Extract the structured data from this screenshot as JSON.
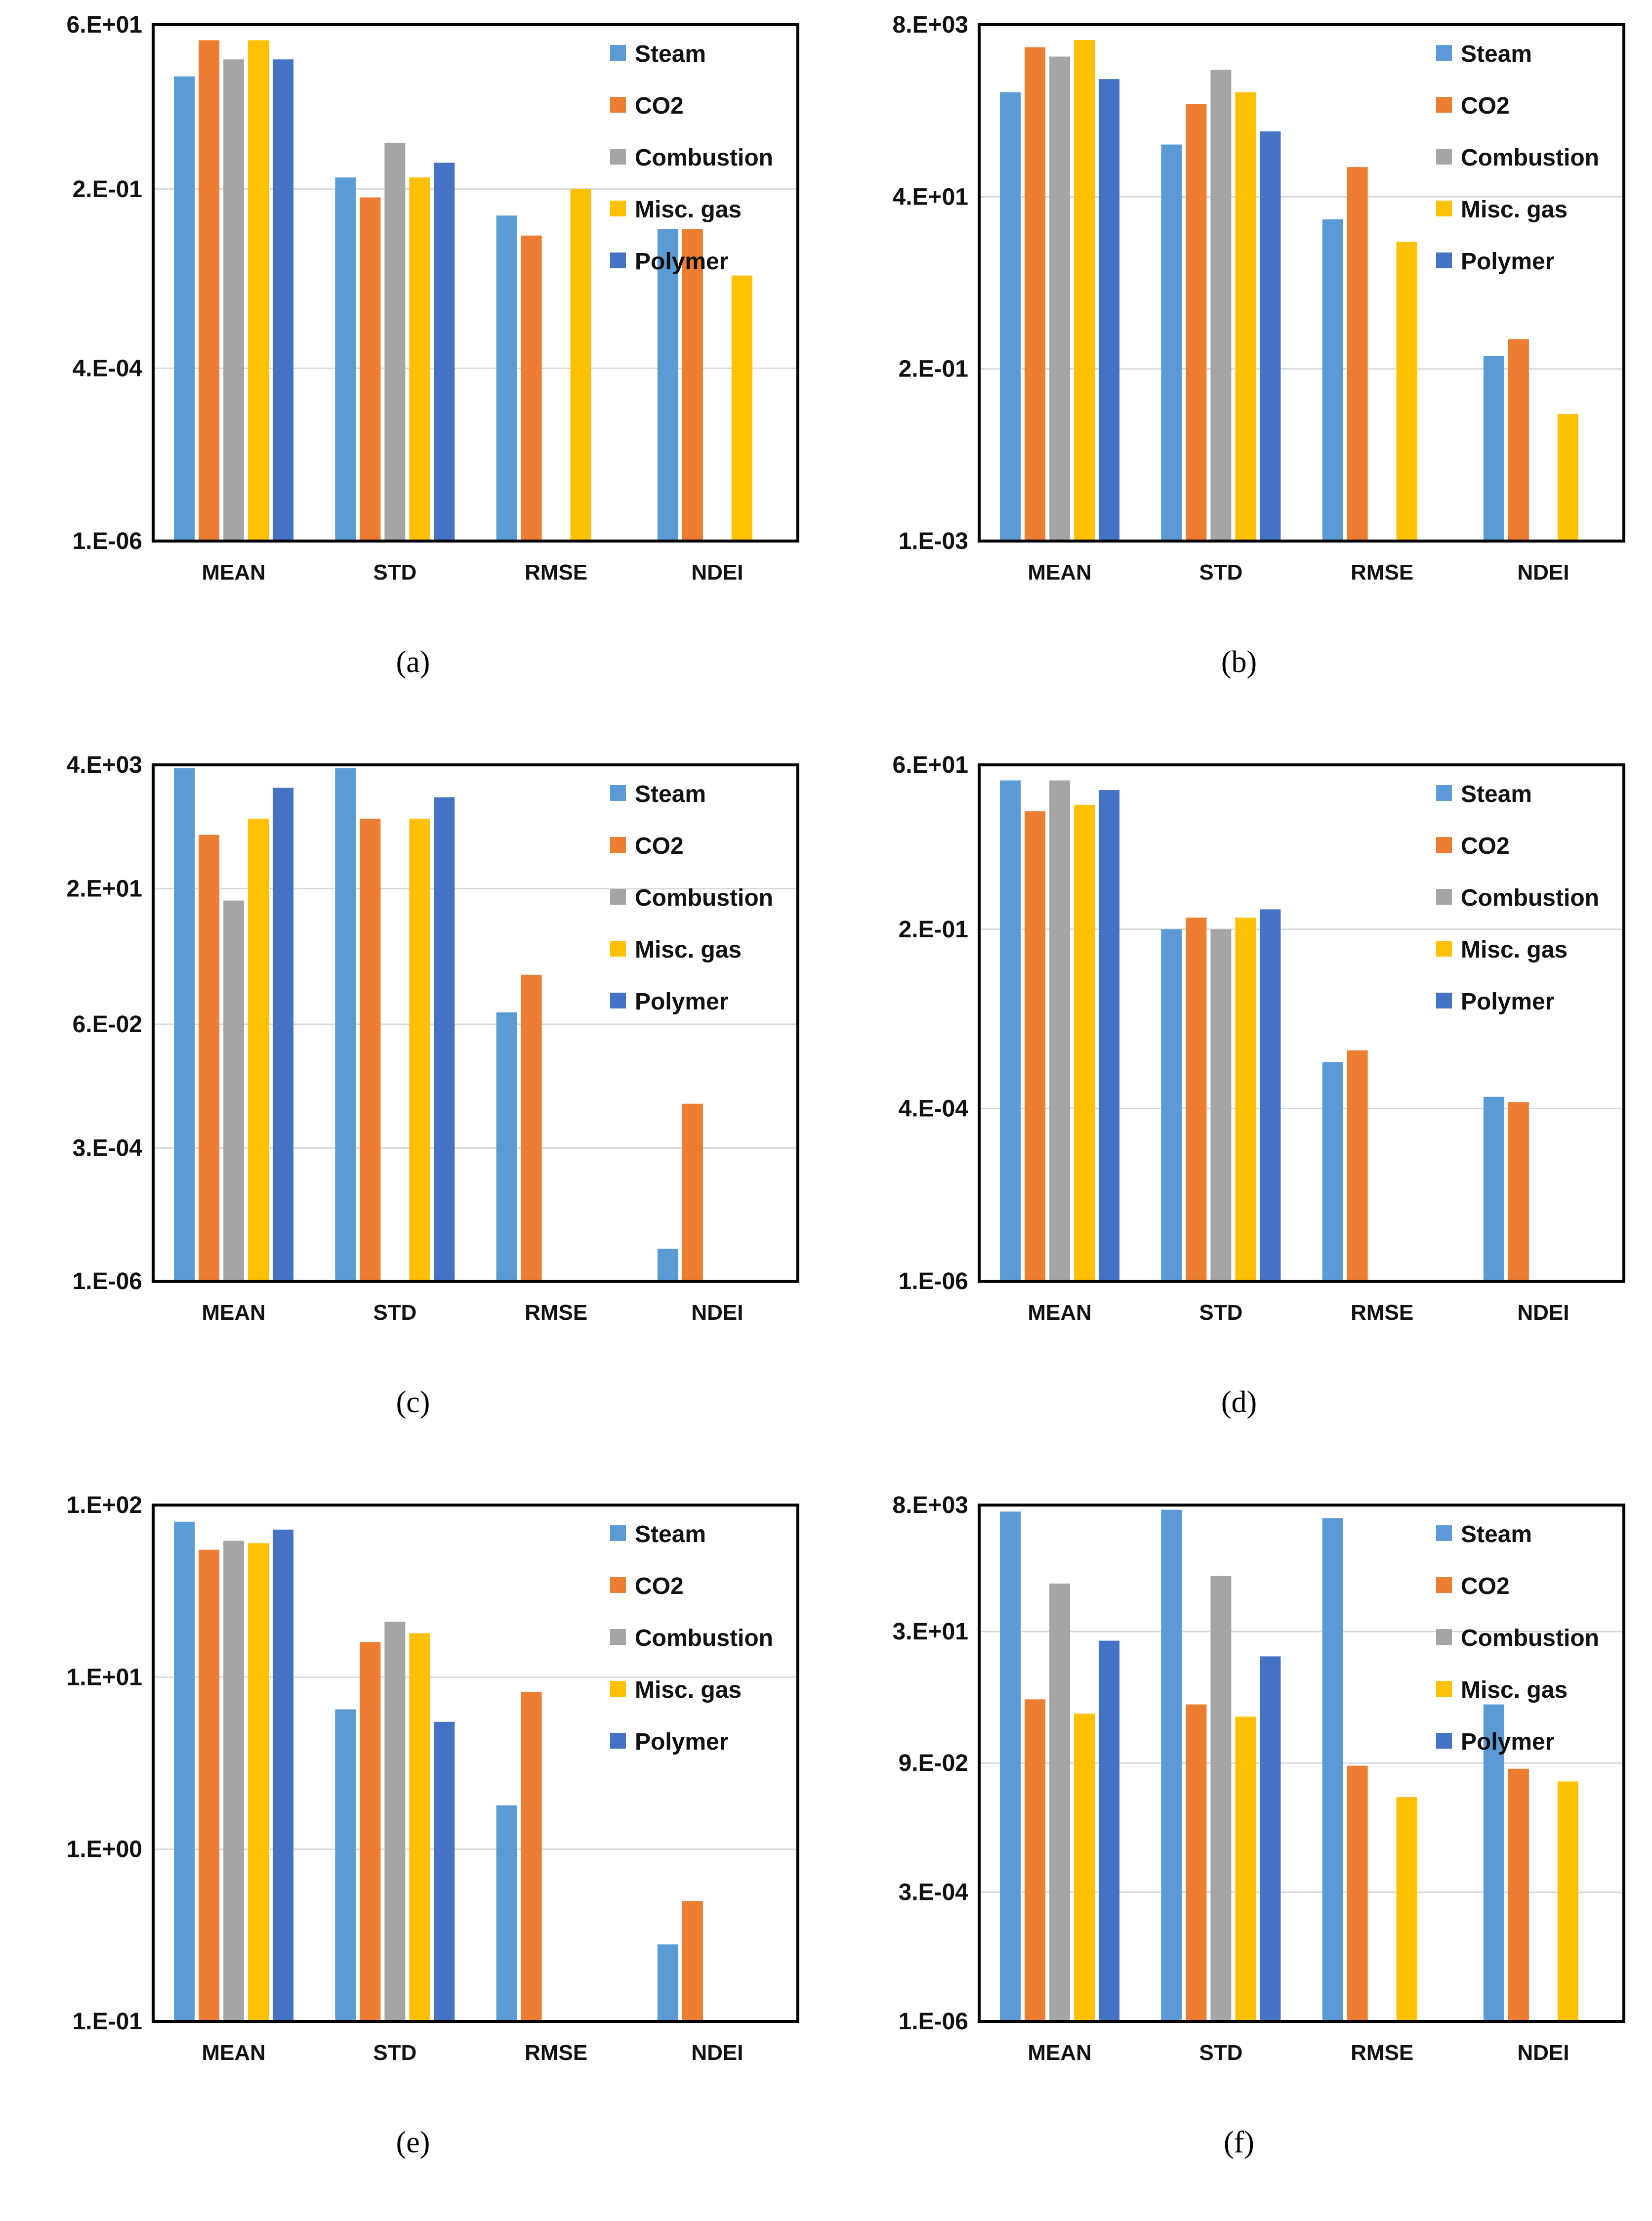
{
  "colors": {
    "Steam": "#5B9BD5",
    "CO2": "#ED7D31",
    "Combustion": "#A5A5A5",
    "Misc. gas": "#FFC000",
    "Polymer": "#4472C4",
    "grid": "#D9D9D9",
    "frame": "#000000"
  },
  "chart_data": [
    {
      "id": "a",
      "type": "bar",
      "caption": "(a)",
      "categories": [
        "MEAN",
        "STD",
        "RMSE",
        "NDEI"
      ],
      "legend": [
        "Steam",
        "CO2",
        "Combustion",
        "Misc. gas",
        "Polymer"
      ],
      "legend_position": "top-right",
      "yscale": "log",
      "yticks": [
        {
          "label": "1.E-06",
          "value": 1e-06
        },
        {
          "label": "4.E-04",
          "value": 0.0004
        },
        {
          "label": "2.E-01",
          "value": 0.2
        },
        {
          "label": "6.E+01",
          "value": 60
        }
      ],
      "series": [
        {
          "name": "Steam",
          "values": [
            10,
            0.3,
            0.08,
            0.05
          ]
        },
        {
          "name": "CO2",
          "values": [
            35,
            0.15,
            0.04,
            0.05
          ]
        },
        {
          "name": "Combustion",
          "values": [
            18,
            1.0,
            null,
            null
          ]
        },
        {
          "name": "Misc. gas",
          "values": [
            35,
            0.3,
            0.2,
            0.01
          ]
        },
        {
          "name": "Polymer",
          "values": [
            18,
            0.5,
            null,
            null
          ]
        }
      ]
    },
    {
      "id": "b",
      "type": "bar",
      "caption": "(b)",
      "categories": [
        "MEAN",
        "STD",
        "RMSE",
        "NDEI"
      ],
      "legend": [
        "Steam",
        "CO2",
        "Combustion",
        "Misc. gas",
        "Polymer"
      ],
      "legend_position": "top-right",
      "yscale": "log",
      "yticks": [
        {
          "label": "1.E-03",
          "value": 0.001
        },
        {
          "label": "2.E-01",
          "value": 0.2
        },
        {
          "label": "4.E+01",
          "value": 40
        },
        {
          "label": "8.E+03",
          "value": 8000
        }
      ],
      "series": [
        {
          "name": "Steam",
          "values": [
            1000,
            200,
            20,
            0.3
          ]
        },
        {
          "name": "CO2",
          "values": [
            4000,
            700,
            100,
            0.5
          ]
        },
        {
          "name": "Combustion",
          "values": [
            3000,
            2000,
            null,
            null
          ]
        },
        {
          "name": "Misc. gas",
          "values": [
            5000,
            1000,
            10,
            0.05
          ]
        },
        {
          "name": "Polymer",
          "values": [
            1500,
            300,
            null,
            null
          ]
        }
      ]
    },
    {
      "id": "c",
      "type": "bar",
      "caption": "(c)",
      "categories": [
        "MEAN",
        "STD",
        "RMSE",
        "NDEI"
      ],
      "legend": [
        "Steam",
        "CO2",
        "Combustion",
        "Misc. gas",
        "Polymer"
      ],
      "legend_position": "top-right",
      "yscale": "log",
      "yticks": [
        {
          "label": "1.E-06",
          "value": 1e-06
        },
        {
          "label": "3.E-04",
          "value": 0.0003
        },
        {
          "label": "6.E-02",
          "value": 0.06
        },
        {
          "label": "2.E+01",
          "value": 20
        },
        {
          "label": "4.E+03",
          "value": 4000
        }
      ],
      "series": [
        {
          "name": "Steam",
          "values": [
            3500,
            3500,
            0.1,
            4e-06
          ]
        },
        {
          "name": "CO2",
          "values": [
            200,
            400,
            0.5,
            0.002
          ]
        },
        {
          "name": "Combustion",
          "values": [
            12,
            null,
            null,
            null
          ]
        },
        {
          "name": "Misc. gas",
          "values": [
            400,
            400,
            null,
            null
          ]
        },
        {
          "name": "Polymer",
          "values": [
            1500,
            1000,
            null,
            null
          ]
        }
      ]
    },
    {
      "id": "d",
      "type": "bar",
      "caption": "(d)",
      "categories": [
        "MEAN",
        "STD",
        "RMSE",
        "NDEI"
      ],
      "legend": [
        "Steam",
        "CO2",
        "Combustion",
        "Misc. gas",
        "Polymer"
      ],
      "legend_position": "top-right",
      "yscale": "log",
      "yticks": [
        {
          "label": "1.E-06",
          "value": 1e-06
        },
        {
          "label": "4.E-04",
          "value": 0.0004
        },
        {
          "label": "2.E-01",
          "value": 0.2
        },
        {
          "label": "6.E+01",
          "value": 60
        }
      ],
      "series": [
        {
          "name": "Steam",
          "values": [
            35,
            0.2,
            0.002,
            0.0006
          ]
        },
        {
          "name": "CO2",
          "values": [
            12,
            0.3,
            0.003,
            0.0005
          ]
        },
        {
          "name": "Combustion",
          "values": [
            35,
            0.2,
            null,
            null
          ]
        },
        {
          "name": "Misc. gas",
          "values": [
            15,
            0.3,
            null,
            null
          ]
        },
        {
          "name": "Polymer",
          "values": [
            25,
            0.4,
            null,
            null
          ]
        }
      ]
    },
    {
      "id": "e",
      "type": "bar",
      "caption": "(e)",
      "categories": [
        "MEAN",
        "STD",
        "RMSE",
        "NDEI"
      ],
      "legend": [
        "Steam",
        "CO2",
        "Combustion",
        "Misc. gas",
        "Polymer"
      ],
      "legend_position": "top-right",
      "yscale": "log",
      "yticks": [
        {
          "label": "1.E-01",
          "value": 0.1
        },
        {
          "label": "1.E+00",
          "value": 1
        },
        {
          "label": "1.E+01",
          "value": 10
        },
        {
          "label": "1.E+02",
          "value": 100
        }
      ],
      "series": [
        {
          "name": "Steam",
          "values": [
            80,
            6.5,
            1.8,
            0.28
          ]
        },
        {
          "name": "CO2",
          "values": [
            55,
            16,
            8.2,
            0.5
          ]
        },
        {
          "name": "Combustion",
          "values": [
            62,
            21,
            null,
            null
          ]
        },
        {
          "name": "Misc. gas",
          "values": [
            60,
            18,
            null,
            null
          ]
        },
        {
          "name": "Polymer",
          "values": [
            72,
            5.5,
            null,
            null
          ]
        }
      ]
    },
    {
      "id": "f",
      "type": "bar",
      "caption": "(f)",
      "categories": [
        "MEAN",
        "STD",
        "RMSE",
        "NDEI"
      ],
      "legend": [
        "Steam",
        "CO2",
        "Combustion",
        "Misc. gas",
        "Polymer"
      ],
      "legend_position": "top-right",
      "yscale": "log",
      "yticks": [
        {
          "label": "1.E-06",
          "value": 1e-06
        },
        {
          "label": "3.E-04",
          "value": 0.0003
        },
        {
          "label": "9.E-02",
          "value": 0.09
        },
        {
          "label": "3.E+01",
          "value": 30
        },
        {
          "label": "8.E+03",
          "value": 8000
        }
      ],
      "series": [
        {
          "name": "Steam",
          "values": [
            6000,
            6500,
            4500,
            1.2
          ]
        },
        {
          "name": "CO2",
          "values": [
            1.5,
            1.2,
            0.08,
            0.07
          ]
        },
        {
          "name": "Combustion",
          "values": [
            250,
            350,
            null,
            null
          ]
        },
        {
          "name": "Misc. gas",
          "values": [
            0.8,
            0.7,
            0.02,
            0.04
          ]
        },
        {
          "name": "Polymer",
          "values": [
            20,
            10,
            null,
            null
          ]
        }
      ]
    }
  ]
}
